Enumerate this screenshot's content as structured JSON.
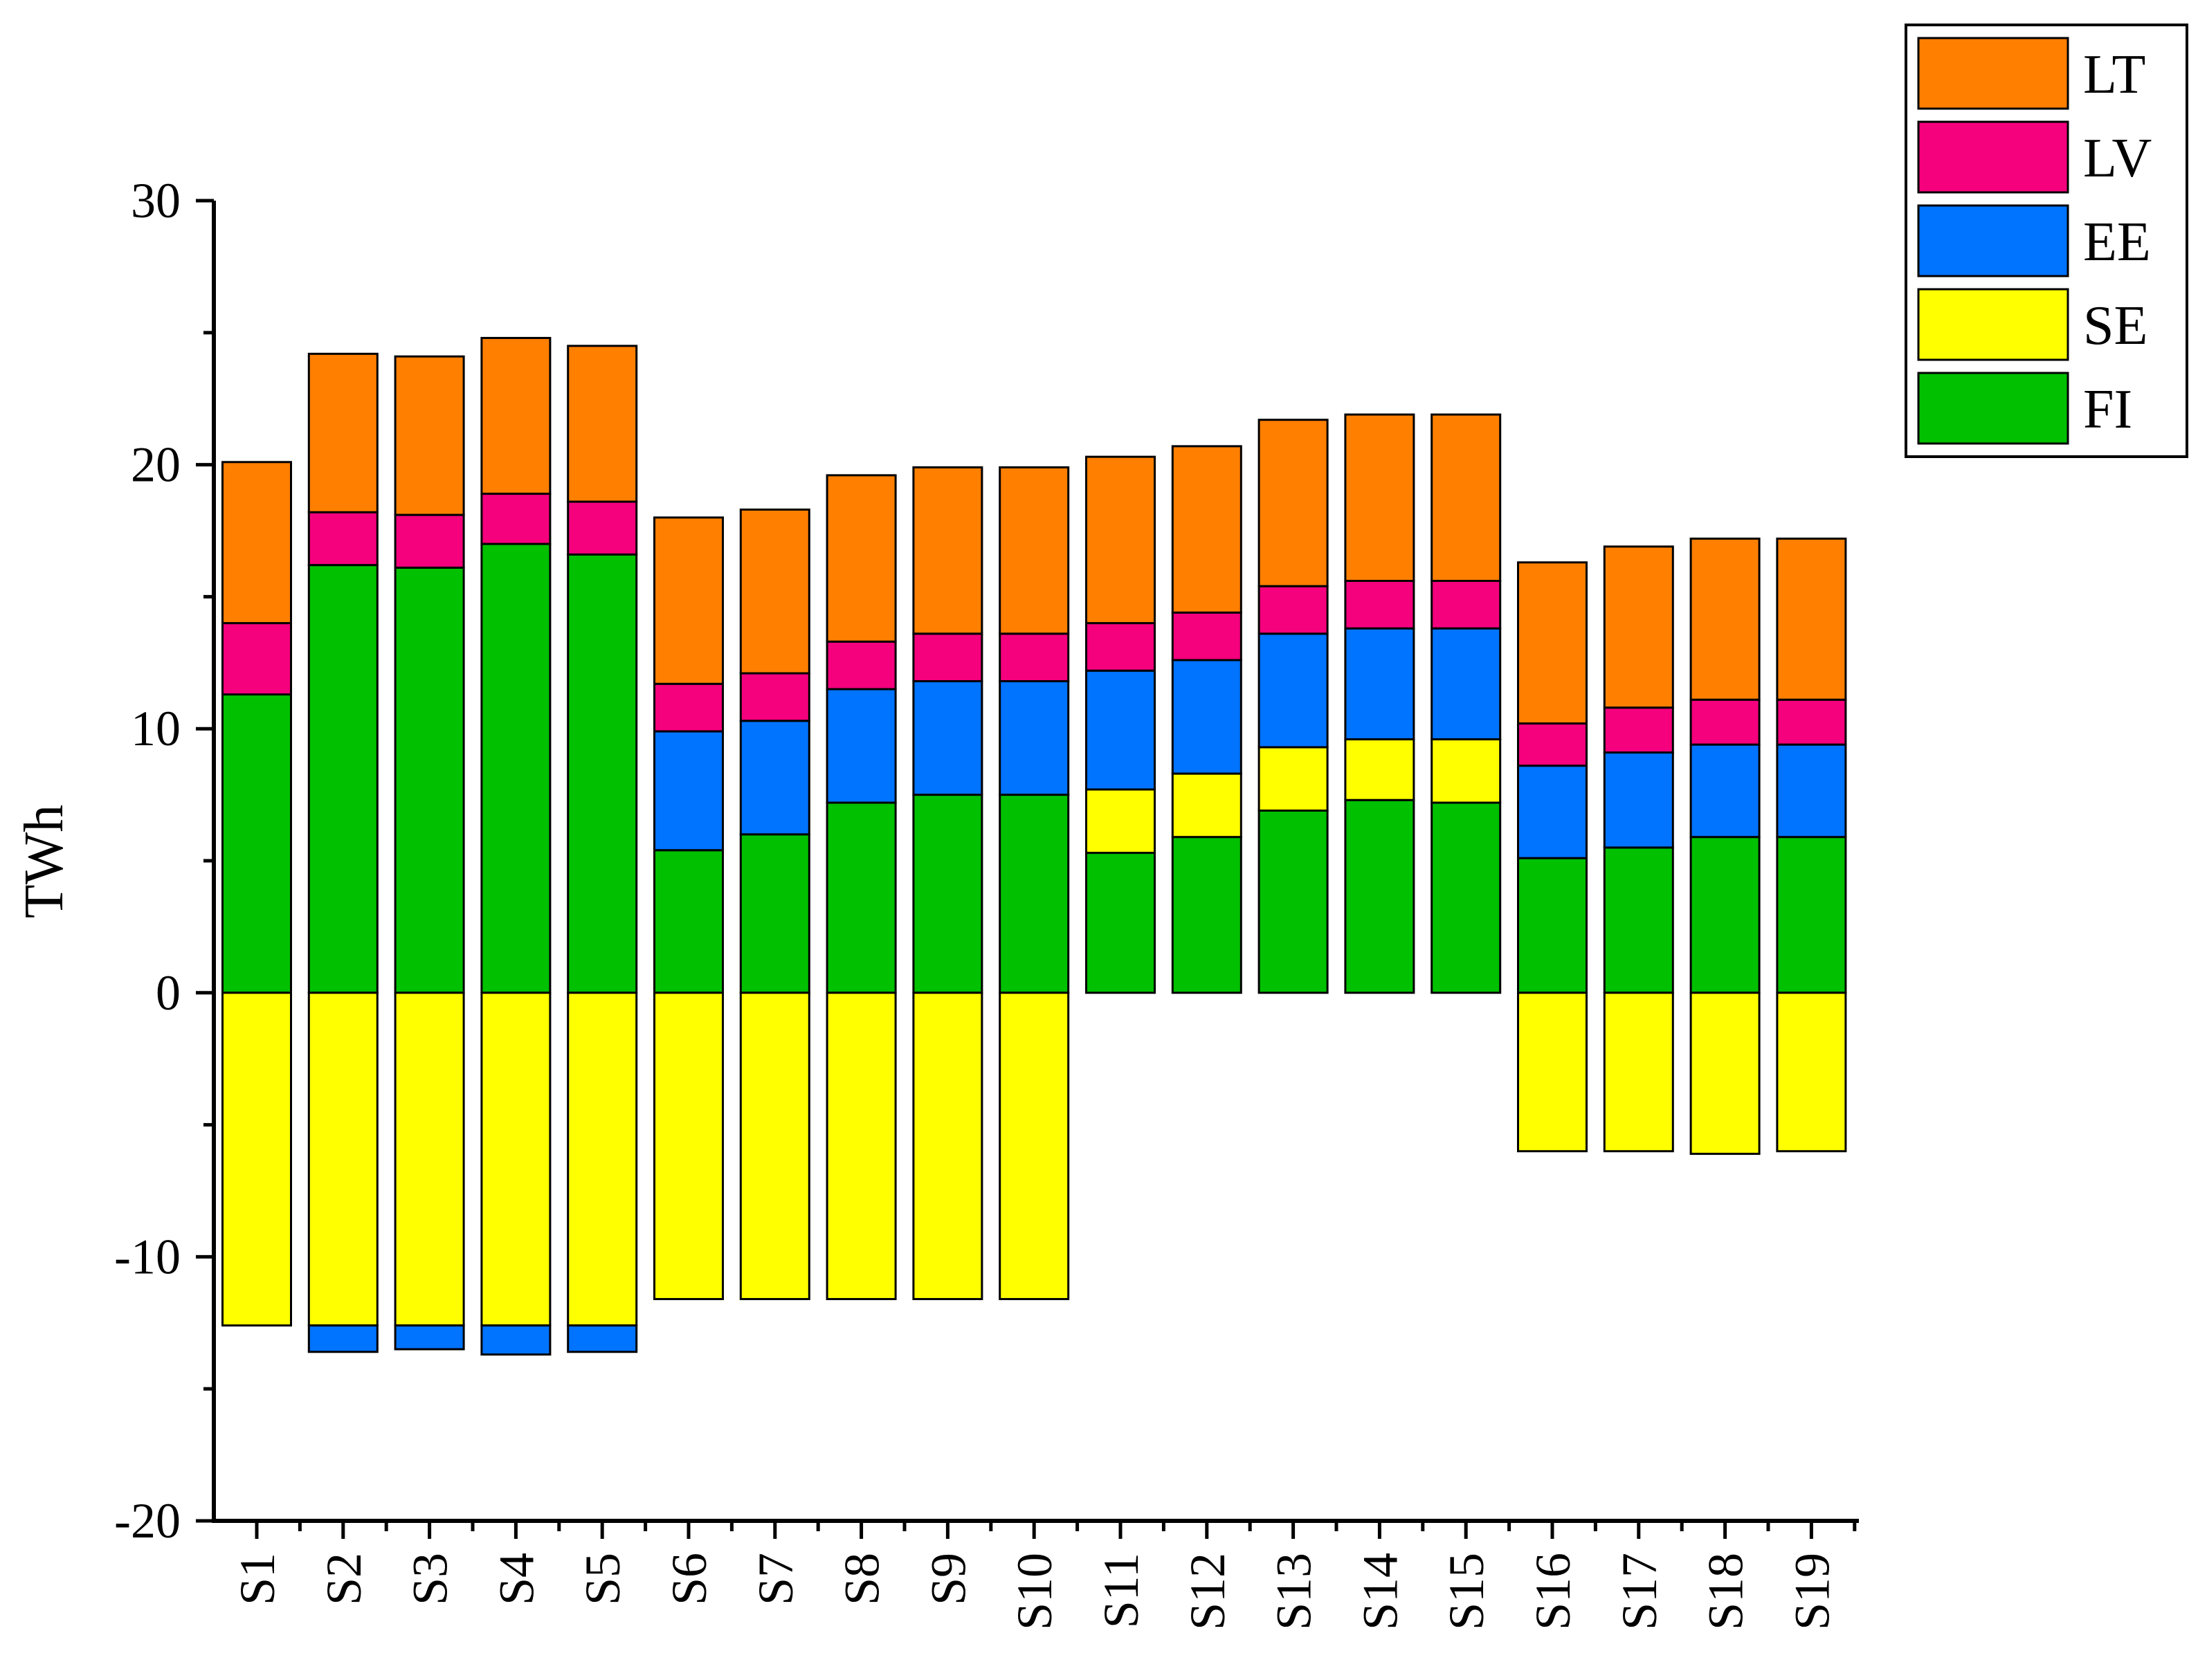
{
  "chart_data": {
    "type": "bar",
    "stacked": true,
    "title": "",
    "xlabel": "",
    "ylabel": "TWh",
    "ylim": [
      -20,
      30
    ],
    "yticks": [
      -20,
      -10,
      0,
      10,
      20,
      30
    ],
    "ytick_labels": [
      "-20",
      "-10",
      "0",
      "10",
      "20",
      "30"
    ],
    "categories": [
      "S1",
      "S2",
      "S3",
      "S4",
      "S5",
      "S6",
      "S7",
      "S8",
      "S9",
      "S10",
      "S11",
      "S12",
      "S13",
      "S14",
      "S15",
      "S16",
      "S17",
      "S18",
      "S19"
    ],
    "legend_position": "top-right",
    "series": [
      {
        "name": "FI",
        "color": "#00c000",
        "values": [
          11.3,
          16.2,
          16.1,
          17.0,
          16.6,
          5.4,
          6.0,
          7.2,
          7.5,
          7.5,
          5.3,
          5.9,
          6.9,
          7.3,
          7.2,
          5.1,
          5.5,
          5.9,
          5.9
        ]
      },
      {
        "name": "SE",
        "color": "#ffff00",
        "values": [
          -12.6,
          -12.6,
          -12.6,
          -12.6,
          -12.6,
          -11.6,
          -11.6,
          -11.6,
          -11.6,
          -11.6,
          2.4,
          2.4,
          2.4,
          2.3,
          2.4,
          -6.0,
          -6.0,
          -6.1,
          -6.0
        ]
      },
      {
        "name": "EE",
        "color": "#0073ff",
        "values": [
          0.0,
          -1.0,
          -0.9,
          -1.1,
          -1.0,
          4.5,
          4.3,
          4.3,
          4.3,
          4.3,
          4.5,
          4.3,
          4.3,
          4.2,
          4.2,
          3.5,
          3.6,
          3.5,
          3.5
        ]
      },
      {
        "name": "LV",
        "color": "#f5007d",
        "values": [
          2.7,
          2.0,
          2.0,
          1.9,
          2.0,
          1.8,
          1.8,
          1.8,
          1.8,
          1.8,
          1.8,
          1.8,
          1.8,
          1.8,
          1.8,
          1.6,
          1.7,
          1.7,
          1.7
        ]
      },
      {
        "name": "LT",
        "color": "#ff7f00",
        "values": [
          6.1,
          6.0,
          6.0,
          5.9,
          5.9,
          6.3,
          6.2,
          6.3,
          6.3,
          6.3,
          6.3,
          6.3,
          6.3,
          6.3,
          6.3,
          6.1,
          6.1,
          6.1,
          6.1
        ]
      }
    ],
    "legend": [
      {
        "name": "LT",
        "color": "#ff7f00"
      },
      {
        "name": "LV",
        "color": "#f5007d"
      },
      {
        "name": "EE",
        "color": "#0073ff"
      },
      {
        "name": "SE",
        "color": "#ffff00"
      },
      {
        "name": "FI",
        "color": "#00c000"
      }
    ]
  }
}
